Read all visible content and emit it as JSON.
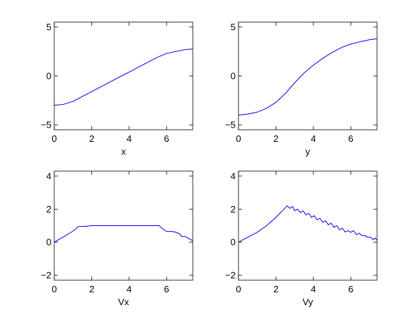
{
  "chart_data": [
    {
      "type": "line",
      "xlabel": "x",
      "xlim": [
        0,
        7.4
      ],
      "ylim": [
        -5.5,
        5.5
      ],
      "xticks": [
        0,
        2,
        4,
        6
      ],
      "yticks": [
        -5,
        0,
        5
      ],
      "series": [
        {
          "color": "#0000ff",
          "x": [
            0,
            0.5,
            1.0,
            1.5,
            2.0,
            2.5,
            3.0,
            3.5,
            4.0,
            4.5,
            5.0,
            5.5,
            6.0,
            6.5,
            7.0,
            7.4
          ],
          "values": [
            -3.0,
            -2.9,
            -2.6,
            -2.1,
            -1.6,
            -1.1,
            -0.6,
            -0.1,
            0.4,
            0.9,
            1.4,
            1.9,
            2.3,
            2.5,
            2.7,
            2.75
          ]
        }
      ]
    },
    {
      "type": "line",
      "xlabel": "y",
      "xlim": [
        0,
        7.4
      ],
      "ylim": [
        -5.5,
        5.5
      ],
      "xticks": [
        0,
        2,
        4,
        6
      ],
      "yticks": [
        -5,
        0,
        5
      ],
      "series": [
        {
          "color": "#0000ff",
          "x": [
            0,
            0.5,
            1.0,
            1.5,
            2.0,
            2.5,
            3.0,
            3.5,
            4.0,
            4.5,
            5.0,
            5.5,
            6.0,
            6.5,
            7.0,
            7.4
          ],
          "values": [
            -4.0,
            -3.9,
            -3.7,
            -3.3,
            -2.7,
            -1.8,
            -0.7,
            0.3,
            1.1,
            1.8,
            2.4,
            2.9,
            3.25,
            3.5,
            3.7,
            3.8
          ]
        }
      ]
    },
    {
      "type": "line",
      "xlabel": "Vx",
      "xlim": [
        0,
        7.4
      ],
      "ylim": [
        -2.3,
        4.3
      ],
      "xticks": [
        0,
        2,
        4,
        6
      ],
      "yticks": [
        -2,
        0,
        2,
        4
      ],
      "series": [
        {
          "color": "#0000ff",
          "x": [
            0,
            0.5,
            1.0,
            1.3,
            1.6,
            2.0,
            3.0,
            4.0,
            5.0,
            5.6,
            5.8,
            6.0,
            6.3,
            6.5,
            6.7,
            6.8,
            7.0,
            7.2,
            7.4
          ],
          "values": [
            0,
            0.33,
            0.67,
            0.95,
            0.95,
            1.0,
            1.0,
            1.0,
            1.0,
            1.0,
            0.8,
            0.65,
            0.65,
            0.6,
            0.5,
            0.35,
            0.35,
            0.2,
            0.1
          ]
        }
      ]
    },
    {
      "type": "line",
      "xlabel": "Vy",
      "xlim": [
        0,
        7.4
      ],
      "ylim": [
        -2.3,
        4.3
      ],
      "xticks": [
        0,
        2,
        4,
        6
      ],
      "yticks": [
        -2,
        0,
        2,
        4
      ],
      "series": [
        {
          "color": "#0000ff",
          "x": [
            0,
            0.5,
            1.0,
            1.5,
            2.0,
            2.3,
            2.6,
            2.75,
            2.9,
            3.0,
            3.15,
            3.3,
            3.45,
            3.6,
            3.75,
            3.9,
            4.05,
            4.2,
            4.35,
            4.5,
            4.65,
            4.8,
            4.95,
            5.1,
            5.25,
            5.4,
            5.55,
            5.7,
            5.85,
            6.0,
            6.15,
            6.3,
            6.45,
            6.6,
            6.75,
            6.9,
            7.05,
            7.2,
            7.3,
            7.4
          ],
          "values": [
            0,
            0.3,
            0.6,
            1.0,
            1.5,
            1.85,
            2.2,
            2.05,
            2.15,
            1.9,
            2.0,
            1.8,
            1.9,
            1.65,
            1.75,
            1.5,
            1.6,
            1.35,
            1.45,
            1.2,
            1.3,
            1.05,
            1.15,
            0.9,
            1.0,
            0.75,
            0.85,
            0.62,
            0.7,
            0.6,
            0.7,
            0.45,
            0.55,
            0.4,
            0.4,
            0.3,
            0.3,
            0.15,
            0.25,
            0.12
          ]
        }
      ]
    }
  ]
}
